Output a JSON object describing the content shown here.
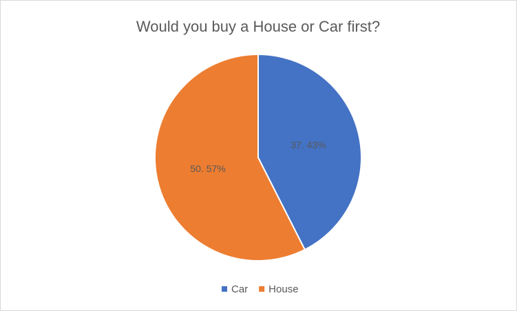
{
  "chart_data": {
    "type": "pie",
    "title": "Would you buy a House or Car first?",
    "categories": [
      "Car",
      "House"
    ],
    "values": [
      37.43,
      50.57
    ],
    "value_labels": [
      "37. 43%",
      "50. 57%"
    ],
    "colors": [
      "#4472c4",
      "#ed7d31"
    ],
    "legend": "bottom"
  }
}
